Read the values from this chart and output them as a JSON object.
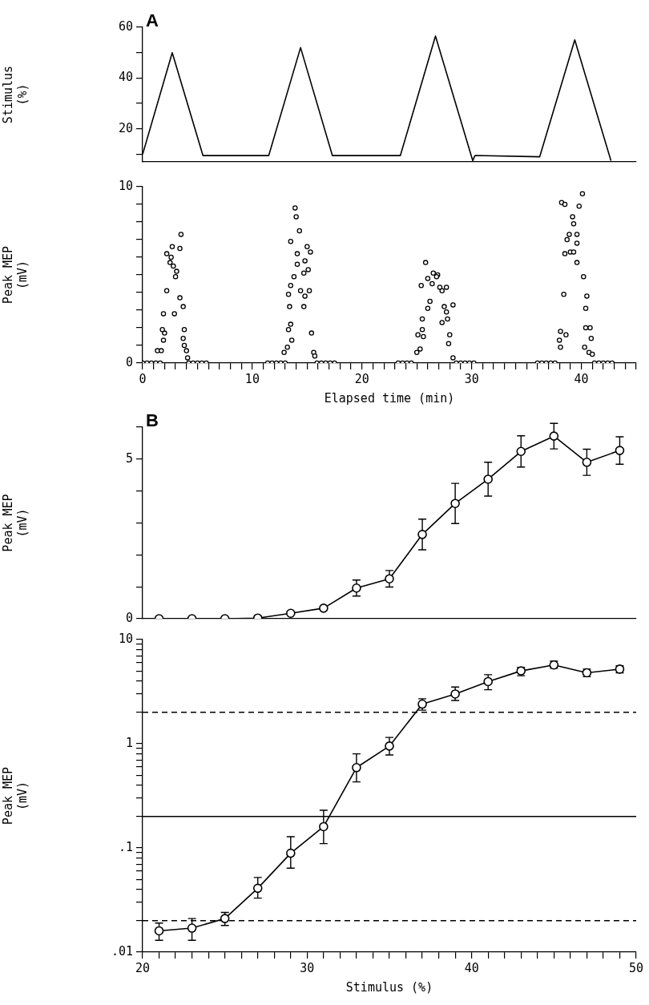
{
  "chart_data": [
    {
      "type": "line",
      "title": "A",
      "ylabel": "Stimulus (%)",
      "color": "#000000",
      "marker": "none",
      "tick_labels": "y",
      "x": [
        0,
        2.7,
        5.5,
        11.5,
        14.4,
        17.3,
        23.5,
        26.7,
        30.1,
        30.3,
        36.2,
        39.4,
        42.7
      ],
      "values": [
        10,
        50,
        9.5,
        9.5,
        52,
        9.5,
        9.5,
        56.5,
        7.5,
        9.5,
        9,
        55,
        7.5
      ],
      "xlim": [
        0,
        45
      ],
      "ylim": [
        7,
        60
      ],
      "yticks": [
        {
          "value": 10,
          "label": null
        },
        20,
        {
          "value": 30,
          "label": null
        },
        40,
        {
          "value": 50,
          "label": null
        },
        60
      ]
    },
    {
      "type": "scatter",
      "xlabel": "Elapsed time (min)",
      "ylabel": "Peak MEP (mV)",
      "color": "#000000",
      "marker": "circle",
      "x": [
        0,
        0.4,
        0.8,
        1.2,
        1.6,
        1.35,
        1.7,
        1.9,
        2.0,
        1.8,
        1.9,
        2.9,
        2.2,
        3.4,
        3.7,
        3.8,
        3.7,
        3.8,
        4.0,
        4.1,
        3.5,
        2.7,
        3.4,
        2.2,
        2.5,
        2.8,
        3.1,
        3.0,
        2.6,
        4.2,
        4.6,
        5.0,
        5.4,
        5.8,
        11.4,
        11.8,
        12.2,
        12.6,
        13.0,
        12.9,
        13.2,
        13.3,
        13.5,
        13.6,
        13.4,
        13.3,
        13.5,
        13.8,
        13.5,
        13.9,
        14.0,
        14.3,
        14.1,
        14.1,
        14.8,
        15.0,
        15.3,
        15.1,
        14.7,
        14.4,
        15.2,
        14.8,
        14.7,
        15.4,
        15.6,
        15.7,
        15.9,
        16.3,
        16.7,
        17.1,
        17.5,
        23.3,
        23.7,
        24.1,
        24.5,
        25.0,
        25.3,
        25.1,
        25.5,
        25.6,
        25.5,
        26.0,
        26.2,
        25.8,
        25.4,
        26.0,
        26.5,
        26.9,
        26.4,
        27.3,
        27.7,
        27.5,
        27.7,
        27.8,
        27.3,
        28.3,
        28.0,
        27.9,
        28.3,
        26.8,
        27.1,
        28.6,
        29.0,
        29.4,
        29.8,
        30.2,
        36.0,
        36.4,
        36.8,
        37.2,
        37.6,
        38.0,
        38.1,
        38.1,
        38.6,
        38.4,
        38.2,
        38.5,
        40.1,
        39.8,
        39.2,
        39.3,
        38.9,
        39.6,
        38.7,
        39.6,
        38.5,
        39.0,
        39.3,
        39.6,
        40.2,
        40.5,
        40.4,
        40.4,
        40.8,
        40.9,
        40.3,
        40.7,
        41.0,
        41.2,
        41.6,
        42.0,
        42.4,
        42.8
      ],
      "values": [
        0,
        0,
        0,
        0,
        0,
        0.7,
        0.7,
        1.3,
        1.7,
        1.9,
        2.8,
        2.8,
        4.1,
        3.7,
        3.2,
        1.9,
        1.4,
        1.0,
        0.7,
        0.3,
        7.3,
        6.6,
        6.5,
        6.2,
        5.7,
        5.5,
        5.2,
        4.9,
        6.0,
        0,
        0,
        0,
        0,
        0,
        0,
        0,
        0,
        0,
        0,
        0.6,
        0.9,
        1.9,
        2.2,
        1.3,
        3.2,
        3.9,
        4.4,
        4.9,
        6.9,
        8.8,
        8.3,
        7.5,
        6.2,
        5.6,
        5.8,
        6.6,
        6.3,
        5.3,
        5.1,
        4.1,
        4.1,
        3.8,
        3.2,
        1.7,
        0.6,
        0.4,
        0,
        0,
        0,
        0,
        0,
        0,
        0,
        0,
        0,
        0.6,
        0.8,
        1.6,
        1.9,
        1.5,
        2.5,
        3.1,
        3.5,
        5.7,
        4.4,
        4.8,
        5.1,
        5.0,
        4.5,
        4.1,
        4.3,
        3.2,
        2.9,
        2.5,
        2.3,
        3.3,
        1.6,
        1.1,
        0.3,
        4.9,
        4.3,
        0,
        0,
        0,
        0,
        0,
        0,
        0,
        0,
        0,
        0,
        1.3,
        1.8,
        0.9,
        1.6,
        3.9,
        9.1,
        9.0,
        9.6,
        8.9,
        8.3,
        7.9,
        7.3,
        7.3,
        7.0,
        6.8,
        6.2,
        6.3,
        6.3,
        5.7,
        4.9,
        3.8,
        3.1,
        2.0,
        2.0,
        1.4,
        0.9,
        0.6,
        0.5,
        0,
        0,
        0,
        0,
        0
      ],
      "xlim": [
        0,
        45
      ],
      "ylim": [
        0,
        10
      ],
      "xticks": [
        0,
        {
          "value": 1,
          "label": null
        },
        {
          "value": 2,
          "label": null
        },
        {
          "value": 3,
          "label": null
        },
        {
          "value": 4,
          "label": null
        },
        {
          "value": 5,
          "label": null
        },
        {
          "value": 6,
          "label": null
        },
        {
          "value": 7,
          "label": null
        },
        {
          "value": 8,
          "label": null
        },
        {
          "value": 9,
          "label": null
        },
        10,
        {
          "value": 11,
          "label": null
        },
        {
          "value": 12,
          "label": null
        },
        {
          "value": 13,
          "label": null
        },
        {
          "value": 14,
          "label": null
        },
        {
          "value": 15,
          "label": null
        },
        {
          "value": 16,
          "label": null
        },
        {
          "value": 17,
          "label": null
        },
        {
          "value": 18,
          "label": null
        },
        {
          "value": 19,
          "label": null
        },
        20,
        {
          "value": 21,
          "label": null
        },
        {
          "value": 22,
          "label": null
        },
        {
          "value": 23,
          "label": null
        },
        {
          "value": 24,
          "label": null
        },
        {
          "value": 25,
          "label": null
        },
        {
          "value": 26,
          "label": null
        },
        {
          "value": 27,
          "label": null
        },
        {
          "value": 28,
          "label": null
        },
        {
          "value": 29,
          "label": null
        },
        30,
        {
          "value": 31,
          "label": null
        },
        {
          "value": 32,
          "label": null
        },
        {
          "value": 33,
          "label": null
        },
        {
          "value": 34,
          "label": null
        },
        {
          "value": 35,
          "label": null
        },
        {
          "value": 36,
          "label": null
        },
        {
          "value": 37,
          "label": null
        },
        {
          "value": 38,
          "label": null
        },
        {
          "value": 39,
          "label": null
        },
        40,
        {
          "value": 41,
          "label": null
        },
        {
          "value": 42,
          "label": null
        },
        {
          "value": 43,
          "label": null
        },
        {
          "value": 44,
          "label": null
        },
        {
          "value": 45,
          "label": null
        }
      ],
      "yticks": [
        0,
        {
          "value": 1,
          "label": null
        },
        {
          "value": 2,
          "label": null
        },
        {
          "value": 3,
          "label": null
        },
        {
          "value": 4,
          "label": null
        },
        {
          "value": 5,
          "label": null
        },
        {
          "value": 6,
          "label": null
        },
        {
          "value": 7,
          "label": null
        },
        {
          "value": 8,
          "label": null
        },
        {
          "value": 9,
          "label": null
        },
        10
      ]
    },
    {
      "type": "line",
      "title": "B",
      "ylabel": "Peak MEP (mV)",
      "color": "#000000",
      "marker": "circle",
      "tick_labels": "y",
      "x": [
        21,
        23,
        25,
        27,
        29,
        31,
        33,
        35,
        37,
        39,
        41,
        43,
        45,
        47,
        49
      ],
      "values": [
        0,
        0,
        0,
        0.02,
        0.17,
        0.33,
        0.96,
        1.25,
        2.64,
        3.61,
        4.37,
        5.24,
        5.72,
        4.9,
        5.27
      ],
      "errors": [
        null,
        null,
        null,
        null,
        null,
        null,
        0.25,
        0.26,
        0.48,
        0.63,
        0.53,
        0.49,
        0.4,
        0.41,
        0.43
      ],
      "xlim": [
        20,
        50
      ],
      "ylim": [
        0,
        6
      ],
      "yticks": [
        0,
        {
          "value": 1,
          "label": null
        },
        {
          "value": 2,
          "label": null
        },
        {
          "value": 3,
          "label": null
        },
        {
          "value": 4,
          "label": null
        },
        5,
        {
          "value": 6,
          "label": null
        }
      ]
    },
    {
      "type": "line",
      "xlabel": "Stimulus (%)",
      "ylabel": "Peak MEP (mV)",
      "color": "#000000",
      "marker": "circle",
      "log": "y",
      "x": [
        21,
        23,
        25,
        27,
        29,
        31,
        33,
        35,
        37,
        39,
        41,
        43,
        45,
        47,
        49
      ],
      "values": [
        0.016,
        0.017,
        0.021,
        0.041,
        0.089,
        0.16,
        0.59,
        0.95,
        2.4,
        3.0,
        3.95,
        5.0,
        5.7,
        4.8,
        5.2
      ],
      "errors": [
        [
          0.013,
          0.019
        ],
        [
          0.013,
          0.021
        ],
        [
          0.018,
          0.024
        ],
        [
          0.033,
          0.052
        ],
        [
          0.064,
          0.128
        ],
        [
          0.11,
          0.23
        ],
        [
          0.43,
          0.8
        ],
        [
          0.78,
          1.15
        ],
        [
          2.1,
          2.7
        ],
        [
          2.6,
          3.5
        ],
        [
          3.3,
          4.6
        ],
        [
          4.5,
          5.4
        ],
        [
          5.3,
          6.2
        ],
        [
          4.4,
          5.2
        ],
        [
          4.8,
          5.6
        ]
      ],
      "ref_lines": [
        {
          "axis": "y",
          "value": 2,
          "line_style": "dashed"
        },
        {
          "axis": "y",
          "value": 0.2,
          "line_style": "solid"
        },
        {
          "axis": "y",
          "value": 0.02,
          "line_style": "dashed"
        }
      ],
      "xlim": [
        20,
        50
      ],
      "ylim": [
        0.01,
        10
      ],
      "xticks": [
        20,
        {
          "value": 21,
          "label": null
        },
        {
          "value": 22,
          "label": null
        },
        {
          "value": 23,
          "label": null
        },
        {
          "value": 24,
          "label": null
        },
        {
          "value": 25,
          "label": null
        },
        {
          "value": 26,
          "label": null
        },
        {
          "value": 27,
          "label": null
        },
        {
          "value": 28,
          "label": null
        },
        {
          "value": 29,
          "label": null
        },
        30,
        {
          "value": 31,
          "label": null
        },
        {
          "value": 32,
          "label": null
        },
        {
          "value": 33,
          "label": null
        },
        {
          "value": 34,
          "label": null
        },
        {
          "value": 35,
          "label": null
        },
        {
          "value": 36,
          "label": null
        },
        {
          "value": 37,
          "label": null
        },
        {
          "value": 38,
          "label": null
        },
        {
          "value": 39,
          "label": null
        },
        40,
        {
          "value": 41,
          "label": null
        },
        {
          "value": 42,
          "label": null
        },
        {
          "value": 43,
          "label": null
        },
        {
          "value": 44,
          "label": null
        },
        {
          "value": 45,
          "label": null
        },
        {
          "value": 46,
          "label": null
        },
        {
          "value": 47,
          "label": null
        },
        {
          "value": 48,
          "label": null
        },
        {
          "value": 49,
          "label": null
        },
        50
      ],
      "yticks": [
        {
          "value": 0.01,
          "label": ".01"
        },
        {
          "value": 0.02,
          "label": null
        },
        {
          "value": 0.03,
          "label": null
        },
        {
          "value": 0.04,
          "label": null
        },
        {
          "value": 0.05,
          "label": null
        },
        {
          "value": 0.06,
          "label": null
        },
        {
          "value": 0.07,
          "label": null
        },
        {
          "value": 0.08,
          "label": null
        },
        {
          "value": 0.09,
          "label": null
        },
        {
          "value": 0.1,
          "label": ".1"
        },
        {
          "value": 0.2,
          "label": null
        },
        {
          "value": 0.3,
          "label": null
        },
        {
          "value": 0.4,
          "label": null
        },
        {
          "value": 0.5,
          "label": null
        },
        {
          "value": 0.6,
          "label": null
        },
        {
          "value": 0.7,
          "label": null
        },
        {
          "value": 0.8,
          "label": null
        },
        {
          "value": 0.9,
          "label": null
        },
        1,
        {
          "value": 2,
          "label": null
        },
        {
          "value": 3,
          "label": null
        },
        {
          "value": 4,
          "label": null
        },
        {
          "value": 5,
          "label": null
        },
        {
          "value": 6,
          "label": null
        },
        {
          "value": 7,
          "label": null
        },
        {
          "value": 8,
          "label": null
        },
        {
          "value": 9,
          "label": null
        },
        10
      ]
    }
  ]
}
